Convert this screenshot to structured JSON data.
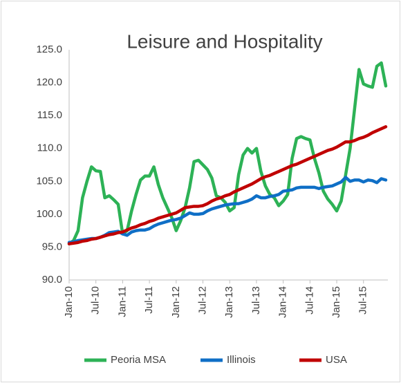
{
  "chart_data": {
    "type": "line",
    "title": "Leisure and Hospitality",
    "categories": [
      "Jan-10",
      null,
      null,
      null,
      null,
      null,
      "Jul-10",
      null,
      null,
      null,
      null,
      null,
      "Jan-11",
      null,
      null,
      null,
      null,
      null,
      "Jul-11",
      null,
      null,
      null,
      null,
      null,
      "Jan-12",
      null,
      null,
      null,
      null,
      null,
      "Jul-12",
      null,
      null,
      null,
      null,
      null,
      "Jan-13",
      null,
      null,
      null,
      null,
      null,
      "Jul-13",
      null,
      null,
      null,
      null,
      null,
      "Jan-14",
      null,
      null,
      null,
      null,
      null,
      "Jul-14",
      null,
      null,
      null,
      null,
      null,
      "Jan-15",
      null,
      null,
      null,
      null,
      null,
      "Jul-15",
      null,
      null,
      null,
      null,
      null
    ],
    "series": [
      {
        "name": "Peoria MSA",
        "color": "#2db256",
        "values": [
          95.5,
          96,
          97.5,
          102.5,
          105,
          107.2,
          106.6,
          106.5,
          102.5,
          102.8,
          102.2,
          101.5,
          97.0,
          97.5,
          100.5,
          103,
          105.2,
          105.8,
          105.8,
          107.2,
          104.5,
          102.5,
          101,
          99.5,
          97.5,
          99,
          101,
          104,
          108,
          108.2,
          107.5,
          106.8,
          105.5,
          102.8,
          102.5,
          101.8,
          100.5,
          101,
          106,
          109,
          110,
          109.3,
          110,
          106.5,
          104.3,
          103,
          102.5,
          101.3,
          102,
          103,
          108.5,
          111.5,
          111.8,
          111.5,
          111.3,
          108.5,
          106.3,
          103.5,
          102.3,
          101.5,
          100.5,
          102,
          106,
          110,
          116,
          122,
          119.8,
          119.5,
          119.3,
          122.5,
          123,
          119.5
        ]
      },
      {
        "name": "Illinois",
        "color": "#0f6fc6",
        "values": [
          95.7,
          95.8,
          96,
          96.1,
          96.2,
          96.3,
          96.3,
          96.5,
          96.8,
          97.2,
          97.3,
          97.4,
          97,
          96.8,
          97.3,
          97.5,
          97.6,
          97.6,
          97.8,
          98.2,
          98.5,
          98.7,
          98.9,
          99.1,
          99.2,
          99.4,
          99.8,
          100.2,
          100,
          100,
          100.1,
          100.5,
          100.8,
          101,
          101.2,
          101.4,
          101.5,
          101.6,
          101.6,
          101.8,
          102,
          102.3,
          102.8,
          102.5,
          102.5,
          102.7,
          102.8,
          103,
          103.5,
          103.6,
          103.7,
          104,
          104.1,
          104.1,
          104.1,
          104.1,
          103.9,
          104.1,
          104.2,
          104.3,
          104.6,
          104.9,
          105.6,
          105,
          105.2,
          105.2,
          104.9,
          105.2,
          105.1,
          104.8,
          105.4,
          105.2
        ]
      },
      {
        "name": "USA",
        "color": "#c00000",
        "values": [
          95.5,
          95.6,
          95.7,
          95.9,
          96.0,
          96.2,
          96.3,
          96.5,
          96.7,
          96.9,
          97.0,
          97.2,
          97.3,
          97.6,
          97.9,
          98.1,
          98.4,
          98.6,
          98.9,
          99.1,
          99.4,
          99.6,
          99.8,
          100.0,
          100.2,
          100.6,
          101,
          101.1,
          101.2,
          101.2,
          101.3,
          101.6,
          102,
          102.3,
          102.5,
          102.8,
          103.0,
          103.4,
          103.7,
          104,
          104.3,
          104.6,
          105,
          105.4,
          105.7,
          105.9,
          106.2,
          106.5,
          106.8,
          107.1,
          107.4,
          107.6,
          107.9,
          108.2,
          108.5,
          108.8,
          109.1,
          109.4,
          109.7,
          109.9,
          110.2,
          110.6,
          111,
          111,
          111.2,
          111.5,
          111.7,
          112,
          112.4,
          112.7,
          113,
          113.3
        ]
      }
    ],
    "ylim": [
      90,
      125
    ],
    "yticks": [
      {
        "value": 90,
        "label": "90.0"
      },
      {
        "value": 95,
        "label": "95.0"
      },
      {
        "value": 100,
        "label": "100.0"
      },
      {
        "value": 105,
        "label": "105.0"
      },
      {
        "value": 110,
        "label": "110.0"
      },
      {
        "value": 115,
        "label": "115.0"
      },
      {
        "value": 120,
        "label": "120.0"
      },
      {
        "value": 125,
        "label": "125.0"
      }
    ],
    "grid": false,
    "legend": "bottom"
  }
}
